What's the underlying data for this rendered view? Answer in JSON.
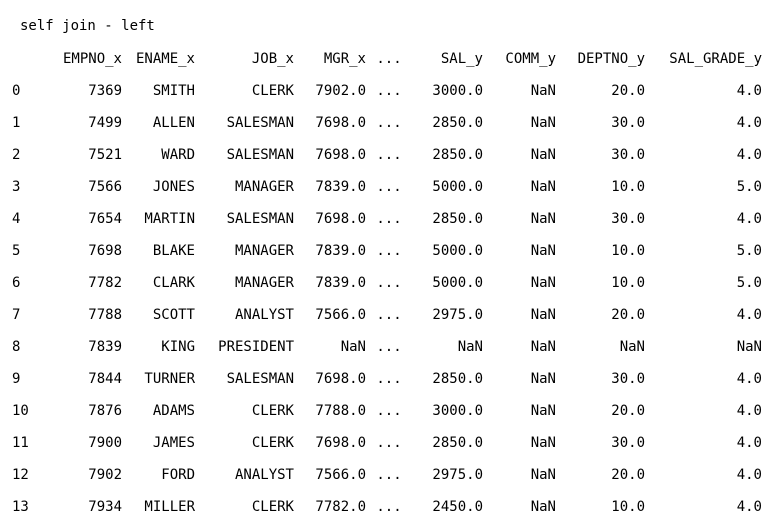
{
  "title": "self join - left",
  "columns": [
    "EMPNO_x",
    "ENAME_x",
    "JOB_x",
    "MGR_x",
    "...",
    "SAL_y",
    "COMM_y",
    "DEPTNO_y",
    "SAL_GRADE_y"
  ],
  "rows": [
    {
      "index": "0",
      "cells": [
        "7369",
        "SMITH",
        "CLERK",
        "7902.0",
        "...",
        "3000.0",
        "NaN",
        "20.0",
        "4.0"
      ]
    },
    {
      "index": "1",
      "cells": [
        "7499",
        "ALLEN",
        "SALESMAN",
        "7698.0",
        "...",
        "2850.0",
        "NaN",
        "30.0",
        "4.0"
      ]
    },
    {
      "index": "2",
      "cells": [
        "7521",
        "WARD",
        "SALESMAN",
        "7698.0",
        "...",
        "2850.0",
        "NaN",
        "30.0",
        "4.0"
      ]
    },
    {
      "index": "3",
      "cells": [
        "7566",
        "JONES",
        "MANAGER",
        "7839.0",
        "...",
        "5000.0",
        "NaN",
        "10.0",
        "5.0"
      ]
    },
    {
      "index": "4",
      "cells": [
        "7654",
        "MARTIN",
        "SALESMAN",
        "7698.0",
        "...",
        "2850.0",
        "NaN",
        "30.0",
        "4.0"
      ]
    },
    {
      "index": "5",
      "cells": [
        "7698",
        "BLAKE",
        "MANAGER",
        "7839.0",
        "...",
        "5000.0",
        "NaN",
        "10.0",
        "5.0"
      ]
    },
    {
      "index": "6",
      "cells": [
        "7782",
        "CLARK",
        "MANAGER",
        "7839.0",
        "...",
        "5000.0",
        "NaN",
        "10.0",
        "5.0"
      ]
    },
    {
      "index": "7",
      "cells": [
        "7788",
        "SCOTT",
        "ANALYST",
        "7566.0",
        "...",
        "2975.0",
        "NaN",
        "20.0",
        "4.0"
      ]
    },
    {
      "index": "8",
      "cells": [
        "7839",
        "KING",
        "PRESIDENT",
        "NaN",
        "...",
        "NaN",
        "NaN",
        "NaN",
        "NaN"
      ]
    },
    {
      "index": "9",
      "cells": [
        "7844",
        "TURNER",
        "SALESMAN",
        "7698.0",
        "...",
        "2850.0",
        "NaN",
        "30.0",
        "4.0"
      ]
    },
    {
      "index": "10",
      "cells": [
        "7876",
        "ADAMS",
        "CLERK",
        "7788.0",
        "...",
        "3000.0",
        "NaN",
        "20.0",
        "4.0"
      ]
    },
    {
      "index": "11",
      "cells": [
        "7900",
        "JAMES",
        "CLERK",
        "7698.0",
        "...",
        "2850.0",
        "NaN",
        "30.0",
        "4.0"
      ]
    },
    {
      "index": "12",
      "cells": [
        "7902",
        "FORD",
        "ANALYST",
        "7566.0",
        "...",
        "2975.0",
        "NaN",
        "20.0",
        "4.0"
      ]
    },
    {
      "index": "13",
      "cells": [
        "7934",
        "MILLER",
        "CLERK",
        "7782.0",
        "...",
        "2450.0",
        "NaN",
        "10.0",
        "4.0"
      ]
    }
  ]
}
